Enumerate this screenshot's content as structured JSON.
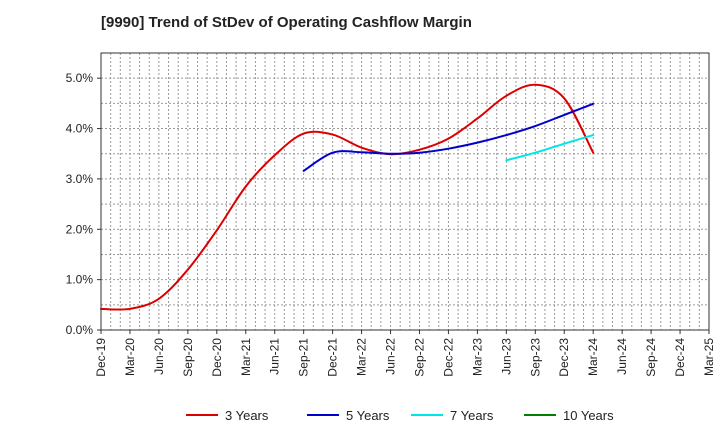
{
  "chart_data": {
    "type": "line",
    "title": "[9990]  Trend of StDev of Operating Cashflow Margin",
    "xlabel": "",
    "ylabel": "",
    "ylim": [
      0,
      5.5
    ],
    "y_ticks": [
      0,
      1,
      2,
      3,
      4,
      5
    ],
    "y_tick_labels": [
      "0.0%",
      "1.0%",
      "2.0%",
      "3.0%",
      "4.0%",
      "5.0%"
    ],
    "x_tick_labels": [
      "Dec-19",
      "Mar-20",
      "Jun-20",
      "Sep-20",
      "Dec-20",
      "Mar-21",
      "Jun-21",
      "Sep-21",
      "Dec-21",
      "Mar-22",
      "Jun-22",
      "Sep-22",
      "Dec-22",
      "Mar-23",
      "Jun-23",
      "Sep-23",
      "Dec-23",
      "Mar-24",
      "Jun-24",
      "Sep-24",
      "Dec-24",
      "Mar-25"
    ],
    "grid": true,
    "legend_position": "bottom",
    "series": [
      {
        "name": "3 Years",
        "color": "#dd0000",
        "values": [
          0.42,
          0.42,
          0.62,
          1.2,
          1.98,
          2.85,
          3.47,
          3.9,
          3.88,
          3.62,
          3.49,
          3.58,
          3.8,
          4.2,
          4.65,
          4.87,
          4.6,
          3.52,
          null,
          null,
          null,
          null
        ]
      },
      {
        "name": "5 Years",
        "color": "#0000cc",
        "values": [
          null,
          null,
          null,
          null,
          null,
          null,
          null,
          3.16,
          3.52,
          3.53,
          3.5,
          3.52,
          3.6,
          3.72,
          3.87,
          4.05,
          4.27,
          4.49,
          null,
          null,
          null,
          null
        ]
      },
      {
        "name": "7 Years",
        "color": "#00e5e5",
        "values": [
          null,
          null,
          null,
          null,
          null,
          null,
          null,
          null,
          null,
          null,
          null,
          null,
          null,
          null,
          3.37,
          3.52,
          3.7,
          3.87,
          null,
          null,
          null,
          null
        ]
      },
      {
        "name": "10 Years",
        "color": "#008000",
        "values": [
          null,
          null,
          null,
          null,
          null,
          null,
          null,
          null,
          null,
          null,
          null,
          null,
          null,
          null,
          null,
          null,
          null,
          null,
          null,
          null,
          null,
          null
        ]
      }
    ]
  }
}
